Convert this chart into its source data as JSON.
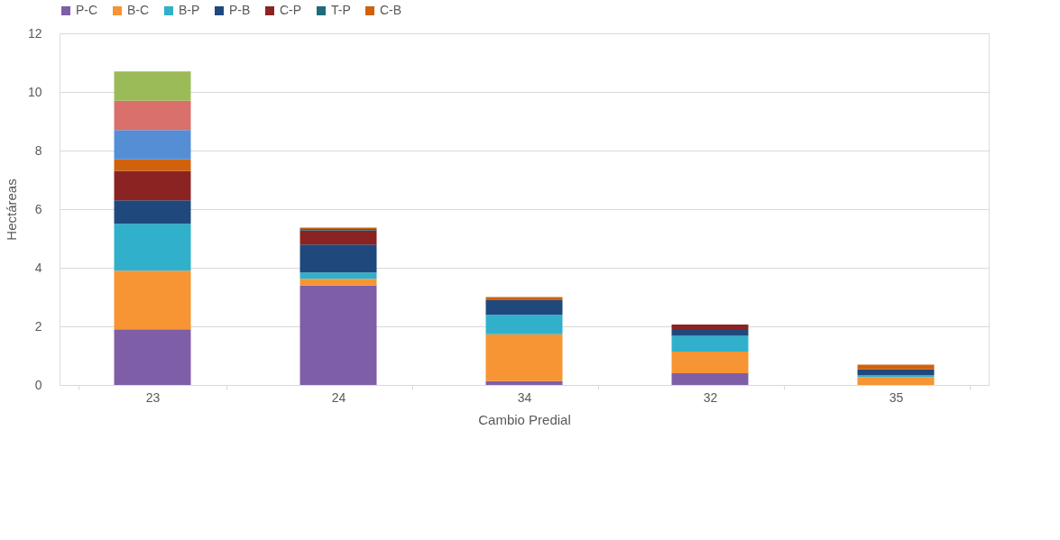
{
  "chart_data": {
    "type": "bar",
    "stacked": true,
    "xlabel": "Cambio Predial",
    "ylabel": "Hectáreas",
    "categories": [
      "23",
      "24",
      "34",
      "32",
      "35"
    ],
    "series": [
      {
        "name": "P-C",
        "color": "#7f5ea8",
        "values": [
          1.9,
          3.4,
          0.13,
          0.4,
          null
        ]
      },
      {
        "name": "B-C",
        "color": "#f79433",
        "values": [
          2.0,
          0.22,
          1.6,
          0.74,
          0.27
        ]
      },
      {
        "name": "B-P",
        "color": "#31b0cc",
        "values": [
          1.6,
          0.22,
          0.66,
          0.54,
          0.07
        ]
      },
      {
        "name": "P-B",
        "color": "#1f497d",
        "values": [
          0.8,
          0.95,
          0.5,
          0.2,
          0.19
        ]
      },
      {
        "name": "C-P",
        "color": "#8b2323",
        "values": [
          1.0,
          0.48,
          null,
          0.18,
          null
        ]
      },
      {
        "name": "T-P",
        "color": "#1f6b7a",
        "values": [
          null,
          0.05,
          null,
          null,
          null
        ]
      },
      {
        "name": "C-B",
        "color": "#d0620e",
        "values": [
          0.4,
          0.05,
          0.11,
          null,
          0.16
        ]
      },
      {
        "color": "#558ed5",
        "values": [
          1.0,
          null,
          null,
          null,
          null
        ]
      },
      {
        "color": "#d9706c",
        "values": [
          1.0,
          null,
          null,
          null,
          null
        ]
      },
      {
        "color": "#9bbb59",
        "values": [
          1.0,
          null,
          null,
          null,
          null
        ]
      }
    ],
    "ylim": [
      0,
      12
    ],
    "yticks": [
      0,
      2,
      4,
      6,
      8,
      10,
      12
    ],
    "grid": "y",
    "legend": "top"
  }
}
